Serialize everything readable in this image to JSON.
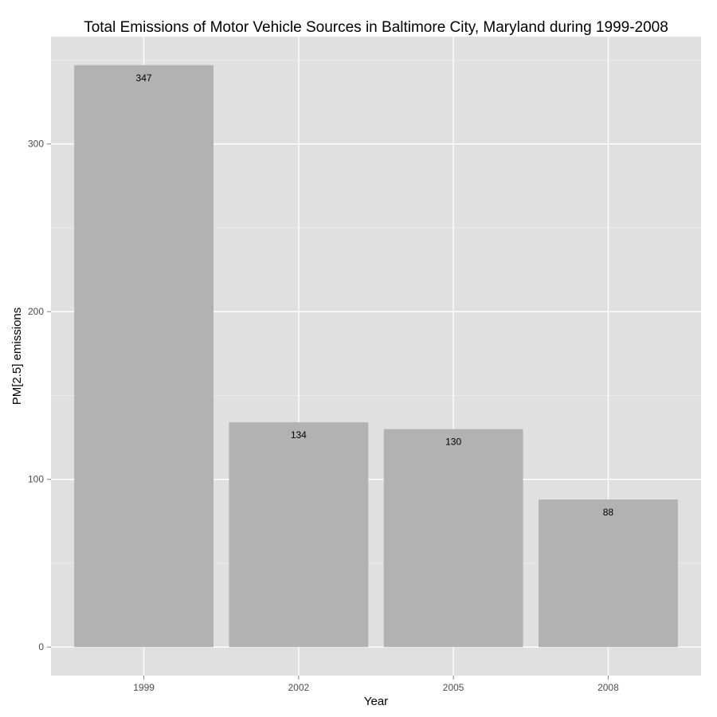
{
  "chart_data": {
    "type": "bar",
    "title": "Total Emissions of Motor Vehicle Sources in Baltimore City, Maryland during 1999-2008",
    "xlabel": "Year",
    "ylabel": "PM[2.5] emissions",
    "categories": [
      "1999",
      "2002",
      "2005",
      "2008"
    ],
    "values": [
      347,
      134,
      130,
      88
    ],
    "data_labels": [
      "347",
      "134",
      "130",
      "88"
    ],
    "ylim": [
      -17,
      364
    ],
    "yticks": [
      0,
      100,
      200,
      300
    ],
    "ytick_labels": [
      "0",
      "100",
      "200",
      "300"
    ],
    "grid": true,
    "colors": {
      "panel": "#e0e0e0",
      "grid_major": "#ffffff",
      "grid_minor": "#ebebeb",
      "bar": "#b2b2b2"
    }
  }
}
